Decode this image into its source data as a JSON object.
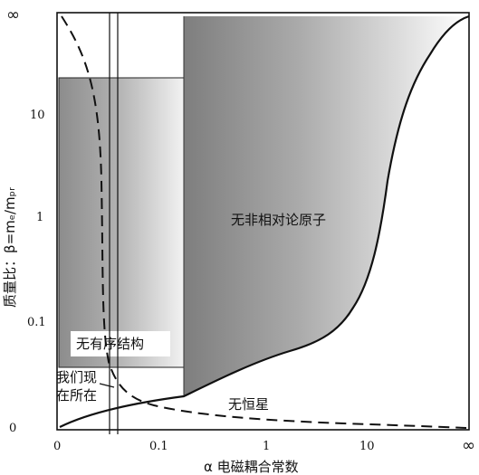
{
  "x_axis": {
    "label": "α 电磁耦合常数",
    "ticks": [
      "0",
      "0.1",
      "1",
      "10",
      "∞"
    ]
  },
  "y_axis": {
    "label": "质量比：β=mₑ/mₚᵣ",
    "ticks": [
      "0",
      "0.1",
      "1",
      "10",
      "∞"
    ]
  },
  "regions": {
    "no_relativistic_atoms": "无非相对论原子",
    "no_ordered_structure": "无有序结构",
    "no_stars": "无恒星",
    "we_are_here_line1": "我们现",
    "we_are_here_line2": "在所在"
  }
}
